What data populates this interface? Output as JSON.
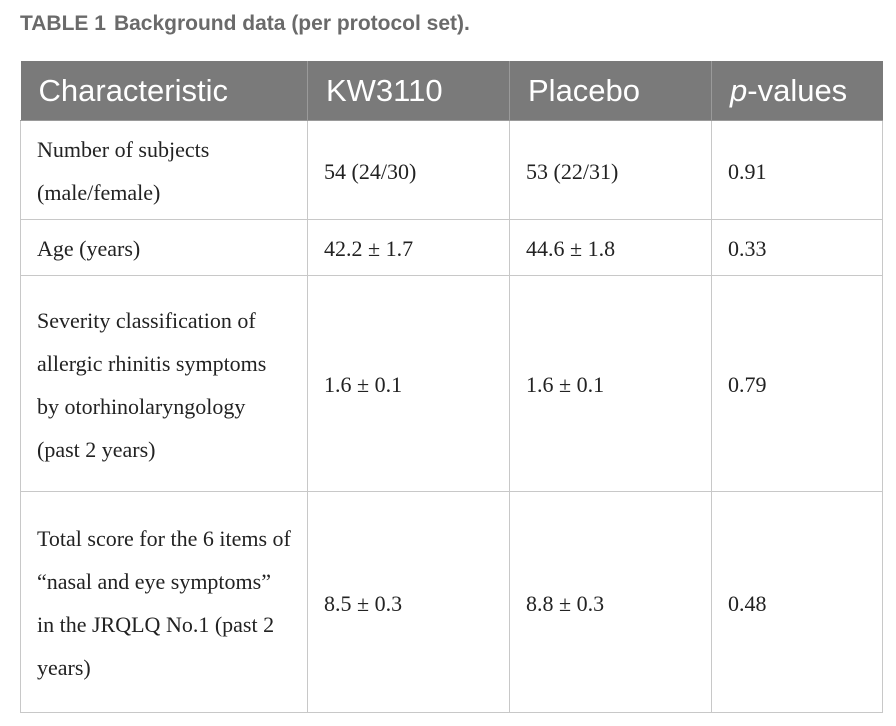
{
  "caption": {
    "label": "TABLE 1",
    "title": "Background data (per protocol set)."
  },
  "table": {
    "headers": {
      "characteristic": "Characteristic",
      "kw3110": "KW3110",
      "placebo": "Placebo",
      "p_prefix": "p",
      "p_suffix": "-values"
    },
    "rows": [
      {
        "characteristic": "Number of subjects (male/female)",
        "kw3110": "54 (24/30)",
        "placebo": "53 (22/31)",
        "p_value": "0.91"
      },
      {
        "characteristic": "Age (years)",
        "kw3110": "42.2 ± 1.7",
        "placebo": "44.6 ± 1.8",
        "p_value": "0.33"
      },
      {
        "characteristic": "Severity classification of allergic rhinitis symptoms by otorhinolaryngology (past 2 years)",
        "kw3110": "1.6 ± 0.1",
        "placebo": "1.6 ± 0.1",
        "p_value": "0.79"
      },
      {
        "characteristic": "Total score for the 6 items of “nasal and eye symptoms” in the JRQLQ No.1 (past 2 years)",
        "kw3110": "8.5 ± 0.3",
        "placebo": "8.8 ± 0.3",
        "p_value": "0.48"
      }
    ]
  }
}
